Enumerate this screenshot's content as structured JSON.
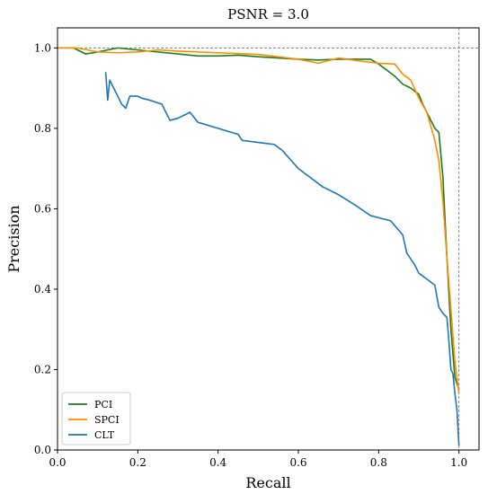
{
  "chart_data": {
    "type": "line",
    "title": "PSNR = 3.0",
    "xlabel": "Recall",
    "ylabel": "Precision",
    "xlim": [
      0.0,
      1.05
    ],
    "ylim": [
      0.0,
      1.05
    ],
    "xticks": [
      "0.0",
      "0.2",
      "0.4",
      "0.6",
      "0.8",
      "1.0"
    ],
    "yticks": [
      "0.0",
      "0.2",
      "0.4",
      "0.6",
      "0.8",
      "1.0"
    ],
    "reference_lines": {
      "x": 1.0,
      "y": 1.0,
      "style": "dashed",
      "color": "#808080"
    },
    "legend_position": "lower-left",
    "grid": false,
    "series": [
      {
        "name": "PCI",
        "color": "#1a7f1a",
        "x": [
          0.0,
          0.04,
          0.07,
          0.1,
          0.15,
          0.2,
          0.25,
          0.3,
          0.35,
          0.4,
          0.45,
          0.5,
          0.55,
          0.6,
          0.65,
          0.7,
          0.75,
          0.78,
          0.8,
          0.82,
          0.84,
          0.86,
          0.88,
          0.9,
          0.91,
          0.92,
          0.93,
          0.94,
          0.95,
          0.96,
          0.97,
          0.98,
          0.99,
          1.0
        ],
        "y": [
          1.0,
          1.0,
          0.985,
          0.99,
          1.0,
          0.995,
          0.99,
          0.985,
          0.98,
          0.98,
          0.982,
          0.978,
          0.975,
          0.972,
          0.97,
          0.972,
          0.972,
          0.972,
          0.96,
          0.945,
          0.93,
          0.91,
          0.9,
          0.885,
          0.86,
          0.84,
          0.82,
          0.8,
          0.79,
          0.68,
          0.48,
          0.3,
          0.18,
          0.15
        ]
      },
      {
        "name": "SPCI",
        "color": "#ff8c00",
        "x": [
          0.0,
          0.05,
          0.1,
          0.15,
          0.2,
          0.25,
          0.3,
          0.35,
          0.4,
          0.45,
          0.5,
          0.55,
          0.6,
          0.65,
          0.7,
          0.75,
          0.8,
          0.84,
          0.86,
          0.88,
          0.9,
          0.92,
          0.94,
          0.95,
          0.96,
          0.97,
          0.98,
          0.99,
          1.0
        ],
        "y": [
          1.0,
          1.0,
          0.99,
          0.988,
          0.99,
          0.995,
          0.992,
          0.99,
          0.988,
          0.986,
          0.984,
          0.978,
          0.972,
          0.962,
          0.975,
          0.968,
          0.962,
          0.96,
          0.935,
          0.92,
          0.875,
          0.84,
          0.77,
          0.72,
          0.62,
          0.48,
          0.35,
          0.22,
          0.14
        ]
      },
      {
        "name": "CLT",
        "color": "#1f77b4",
        "x": [
          0.12,
          0.125,
          0.13,
          0.14,
          0.16,
          0.17,
          0.18,
          0.2,
          0.21,
          0.23,
          0.26,
          0.28,
          0.3,
          0.33,
          0.35,
          0.4,
          0.45,
          0.46,
          0.5,
          0.54,
          0.56,
          0.6,
          0.62,
          0.66,
          0.7,
          0.74,
          0.78,
          0.83,
          0.86,
          0.87,
          0.89,
          0.9,
          0.92,
          0.94,
          0.95,
          0.96,
          0.97,
          0.975,
          0.98,
          0.985,
          0.99,
          0.995,
          1.0
        ],
        "y": [
          0.94,
          0.87,
          0.92,
          0.9,
          0.86,
          0.85,
          0.88,
          0.88,
          0.875,
          0.87,
          0.86,
          0.82,
          0.825,
          0.84,
          0.815,
          0.8,
          0.785,
          0.77,
          0.765,
          0.76,
          0.745,
          0.7,
          0.685,
          0.655,
          0.635,
          0.61,
          0.583,
          0.57,
          0.535,
          0.49,
          0.46,
          0.44,
          0.425,
          0.41,
          0.355,
          0.34,
          0.33,
          0.27,
          0.2,
          0.19,
          0.14,
          0.1,
          0.01
        ]
      }
    ]
  }
}
